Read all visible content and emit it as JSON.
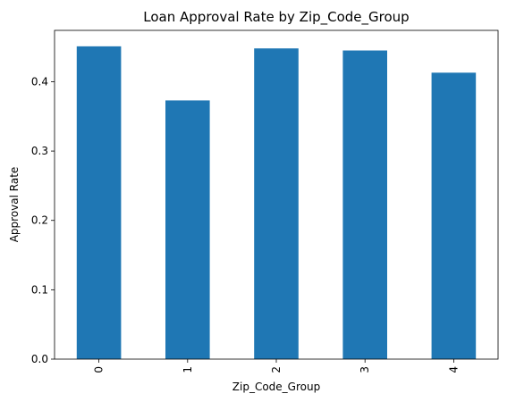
{
  "chart_data": {
    "type": "bar",
    "title": "Loan Approval Rate by Zip_Code_Group",
    "xlabel": "Zip_Code_Group",
    "ylabel": "Approval Rate",
    "categories": [
      "0",
      "1",
      "2",
      "3",
      "4"
    ],
    "values": [
      0.451,
      0.373,
      0.448,
      0.445,
      0.413
    ],
    "ylim": [
      0,
      0.474
    ],
    "yticks": [
      0.0,
      0.1,
      0.2,
      0.3,
      0.4
    ],
    "ytick_labels": [
      "0.0",
      "0.1",
      "0.2",
      "0.3",
      "0.4"
    ],
    "grid": false,
    "bar_color": "#1f77b4",
    "xtick_rotation": "vertical"
  }
}
